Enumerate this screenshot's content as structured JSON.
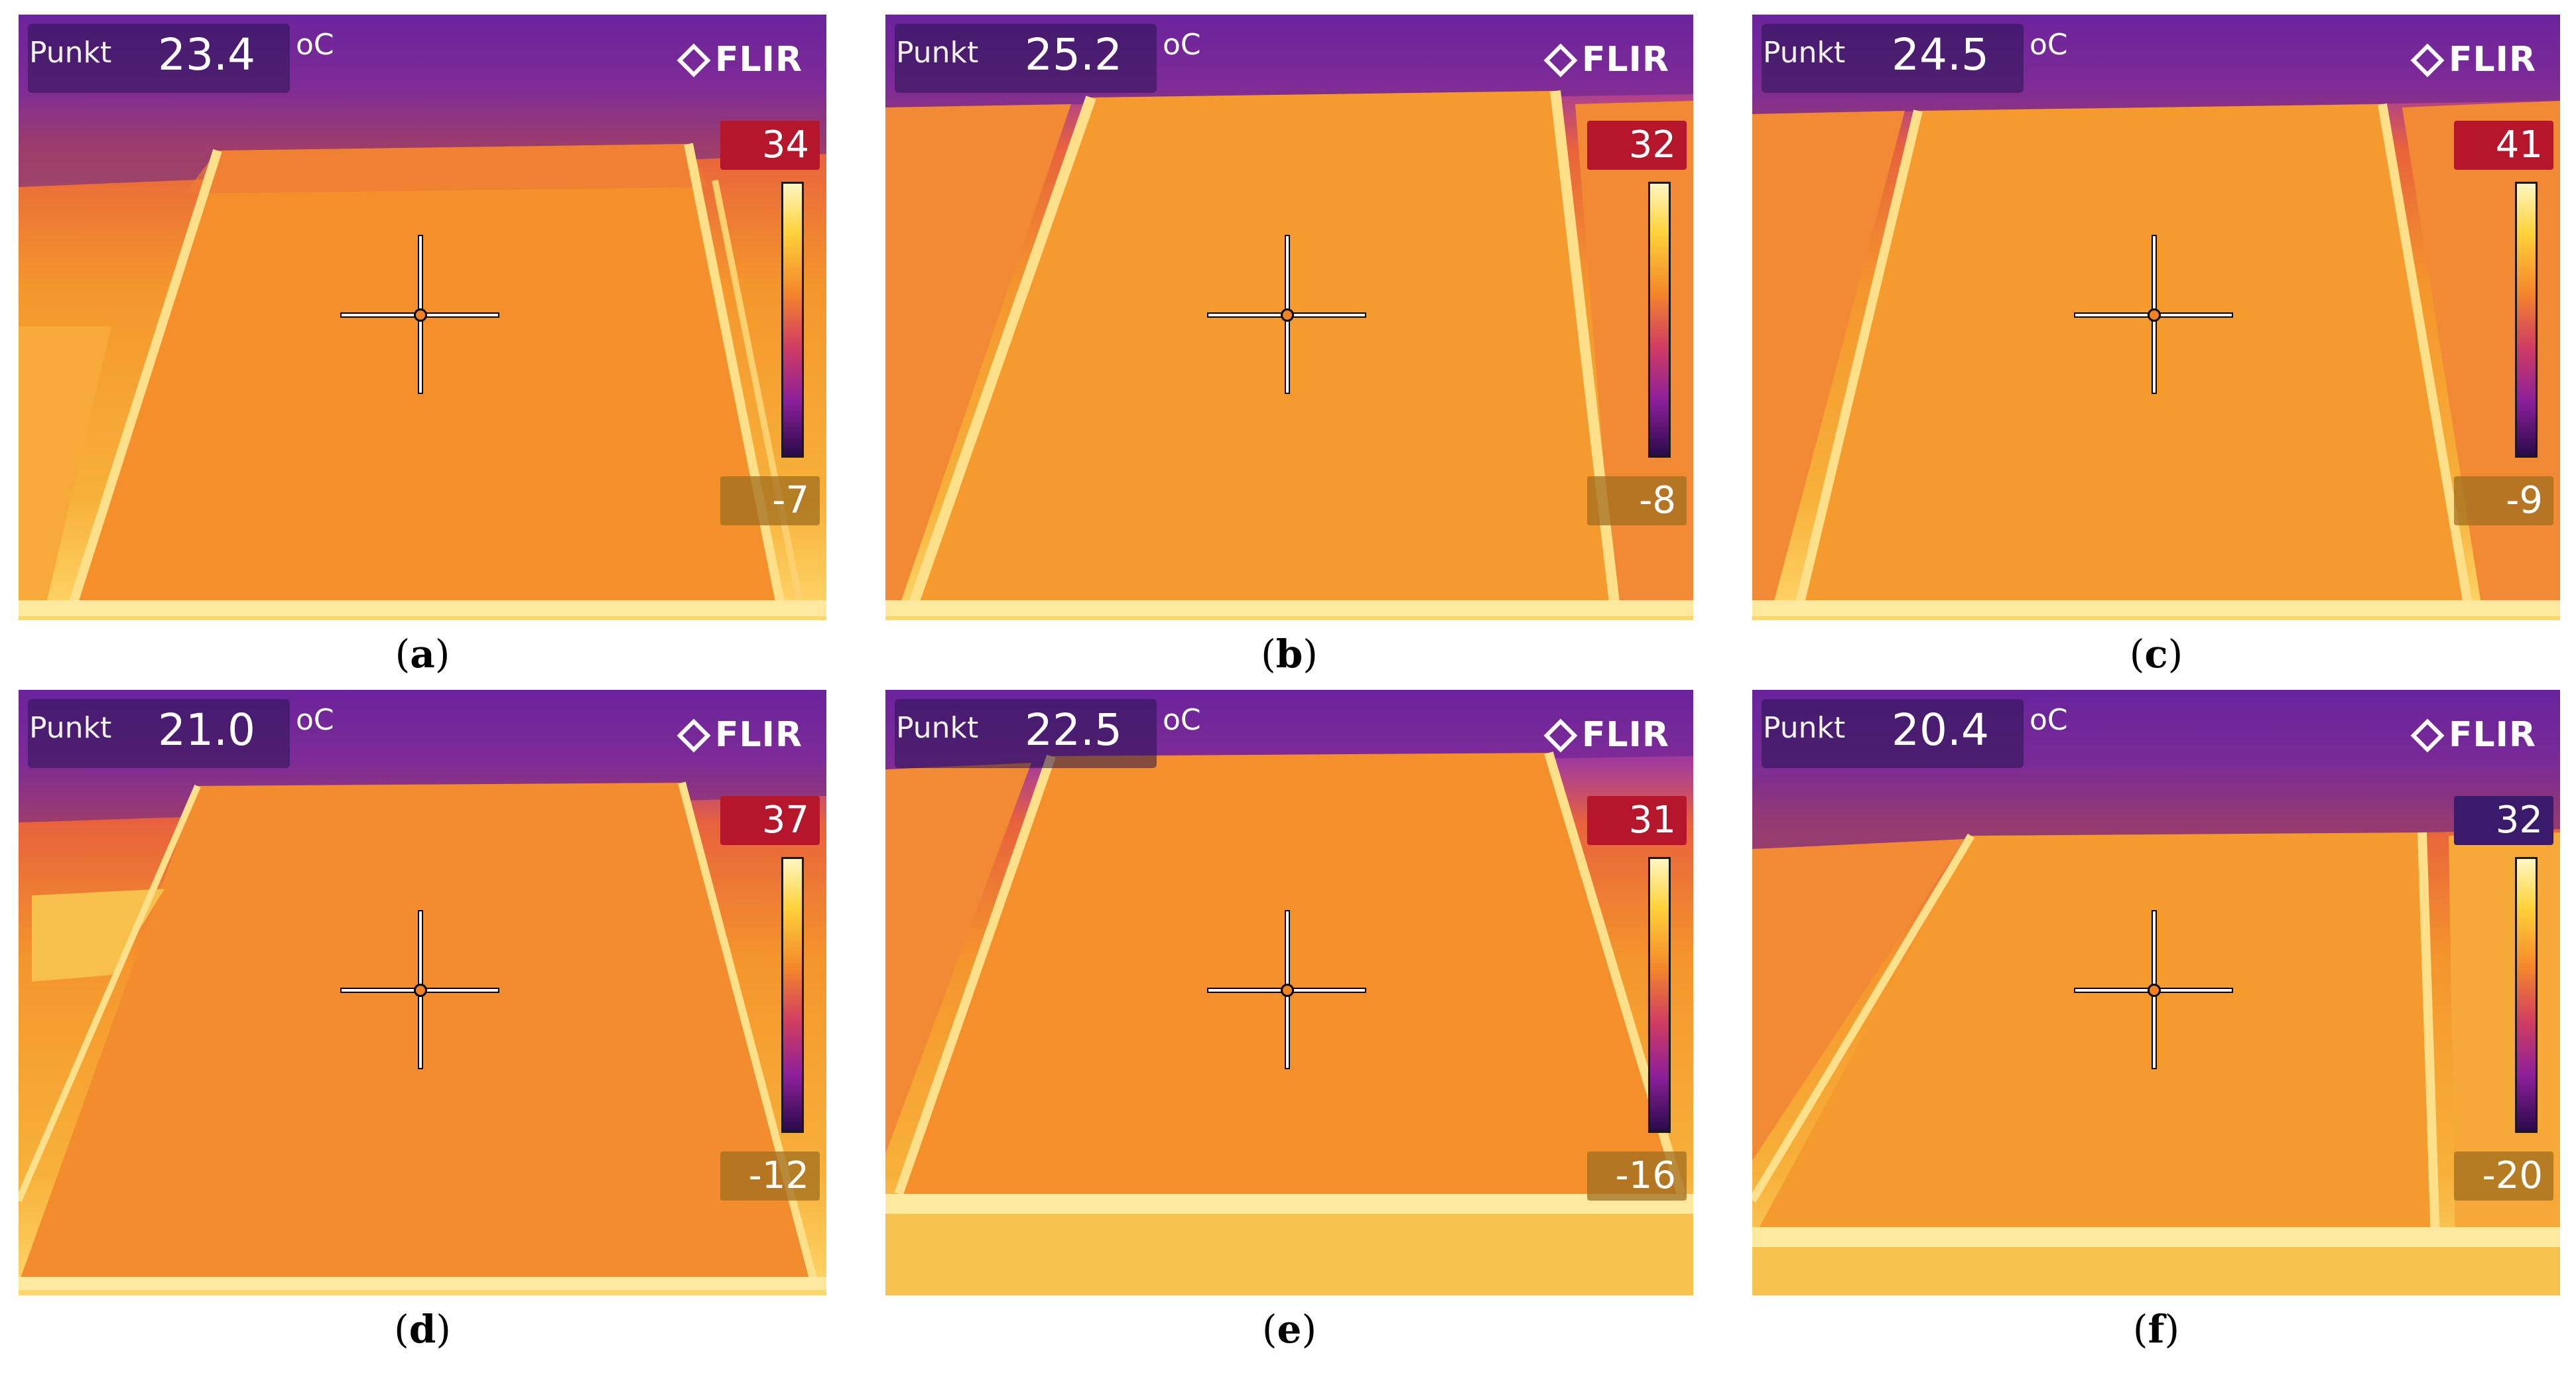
{
  "panels": [
    {
      "label": "a",
      "punkt_label": "Punkt",
      "value": "23.4",
      "unit": "oC",
      "brand": "FLIR",
      "scale_max": "34",
      "scale_min": "-7"
    },
    {
      "label": "b",
      "punkt_label": "Punkt",
      "value": "25.2",
      "unit": "oC",
      "brand": "FLIR",
      "scale_max": "32",
      "scale_min": "-8"
    },
    {
      "label": "c",
      "punkt_label": "Punkt",
      "value": "24.5",
      "unit": "oC",
      "brand": "FLIR",
      "scale_max": "41",
      "scale_min": "-9"
    },
    {
      "label": "d",
      "punkt_label": "Punkt",
      "value": "21.0",
      "unit": "oC",
      "brand": "FLIR",
      "scale_max": "37",
      "scale_min": "-12"
    },
    {
      "label": "e",
      "punkt_label": "Punkt",
      "value": "22.5",
      "unit": "oC",
      "brand": "FLIR",
      "scale_max": "31",
      "scale_min": "-16"
    },
    {
      "label": "f",
      "punkt_label": "Punkt",
      "value": "20.4",
      "unit": "oC",
      "brand": "FLIR",
      "scale_max": "32",
      "scale_min": "-20"
    }
  ],
  "colors": {
    "scale_max_bg": "#b5162b",
    "crosshair_center": "#f1821f",
    "panel_warm": "#f4962c",
    "background_purple": "#7a2aa6"
  }
}
